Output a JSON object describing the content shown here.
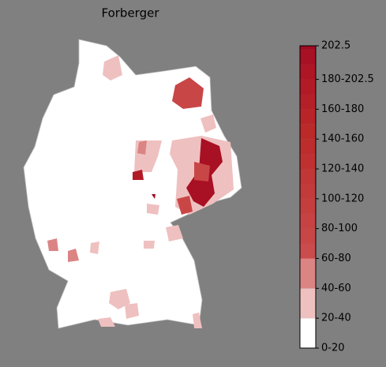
{
  "map": {
    "title": "Forberger",
    "colorbar": {
      "lim": [
        0,
        202.5
      ],
      "ticks": [
        {
          "value": 202.5,
          "label": "202.5"
        },
        {
          "value": 180,
          "label": "180-202.5"
        },
        {
          "value": 160,
          "label": "160-180"
        },
        {
          "value": 140,
          "label": "140-160"
        },
        {
          "value": 120,
          "label": "120-140"
        },
        {
          "value": 100,
          "label": "100-120"
        },
        {
          "value": 80,
          "label": "80-100"
        },
        {
          "value": 60,
          "label": "60-80"
        },
        {
          "value": 40,
          "label": "40-60"
        },
        {
          "value": 20,
          "label": "20-40"
        },
        {
          "value": 0,
          "label": "0-20"
        }
      ],
      "bounds": [
        0,
        20,
        40,
        60,
        70,
        80,
        90,
        100,
        110,
        120,
        130,
        140,
        150,
        160,
        170,
        180,
        190,
        200,
        202.5
      ],
      "colors": [
        "#ffffff",
        "#efc0c0",
        "#db8484",
        "#cb4c4c",
        "#c94646",
        "#c74242",
        "#c53e3e",
        "#c33a3a",
        "#c13636",
        "#bf3131",
        "#bd2d2d",
        "#bb2929",
        "#b82428",
        "#b51f27",
        "#b21a26",
        "#ae1525",
        "#a81024",
        "#a00a22"
      ]
    }
  }
}
